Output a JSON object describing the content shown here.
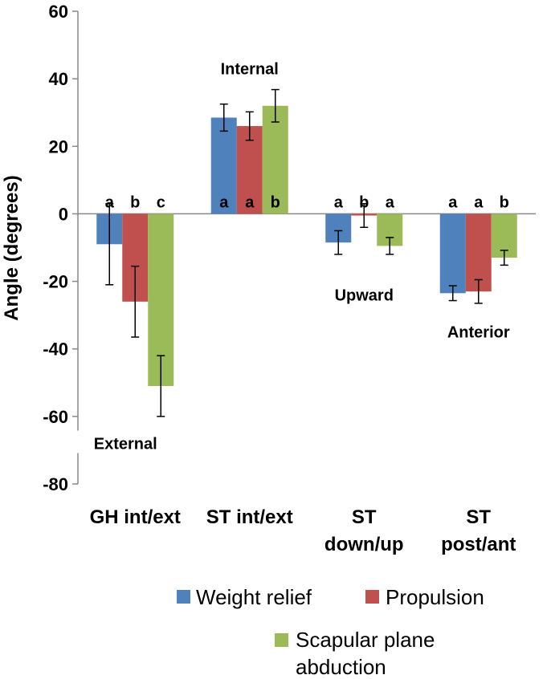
{
  "chart_data": {
    "type": "bar",
    "ylabel": "Angle (degrees)",
    "ylim": [
      -80,
      60
    ],
    "yticks": [
      "60",
      "40",
      "20",
      "0",
      "-20",
      "-40",
      "-60",
      "-80"
    ],
    "categories": [
      [
        "GH int/ext"
      ],
      [
        "ST int/ext"
      ],
      [
        "ST",
        "down/up"
      ],
      [
        "ST",
        "post/ant"
      ]
    ],
    "series": [
      {
        "name": "Weight relief",
        "color": "#4F81BD",
        "values": [
          -9,
          28.5,
          -8.5,
          -23.5
        ],
        "err": [
          12,
          4,
          3.5,
          2.2
        ],
        "sig": [
          "a",
          "a",
          "a",
          "a"
        ]
      },
      {
        "name": "Propulsion",
        "color": "#C0504D",
        "values": [
          -26,
          26,
          -0.5,
          -23
        ],
        "err": [
          10.5,
          4.2,
          3.5,
          3.5
        ],
        "sig": [
          "b",
          "a",
          "b",
          "a"
        ]
      },
      {
        "name": "Scapular plane abduction",
        "color": "#9BBB59",
        "values": [
          -51,
          32,
          -9.5,
          -13
        ],
        "err": [
          9,
          4.8,
          2.5,
          2.2
        ],
        "sig": [
          "c",
          "b",
          "a",
          "b"
        ]
      }
    ],
    "annotations": [
      {
        "id": "internal",
        "text": "Internal",
        "value": 43
      },
      {
        "id": "external",
        "text": "External",
        "value": -68
      },
      {
        "id": "upward",
        "text": "Upward",
        "value": -24
      },
      {
        "id": "anterior",
        "text": "Anterior",
        "value": -35
      }
    ],
    "legend_labels": [
      "Weight relief",
      "Propulsion",
      "Scapular plane",
      "abduction"
    ]
  }
}
